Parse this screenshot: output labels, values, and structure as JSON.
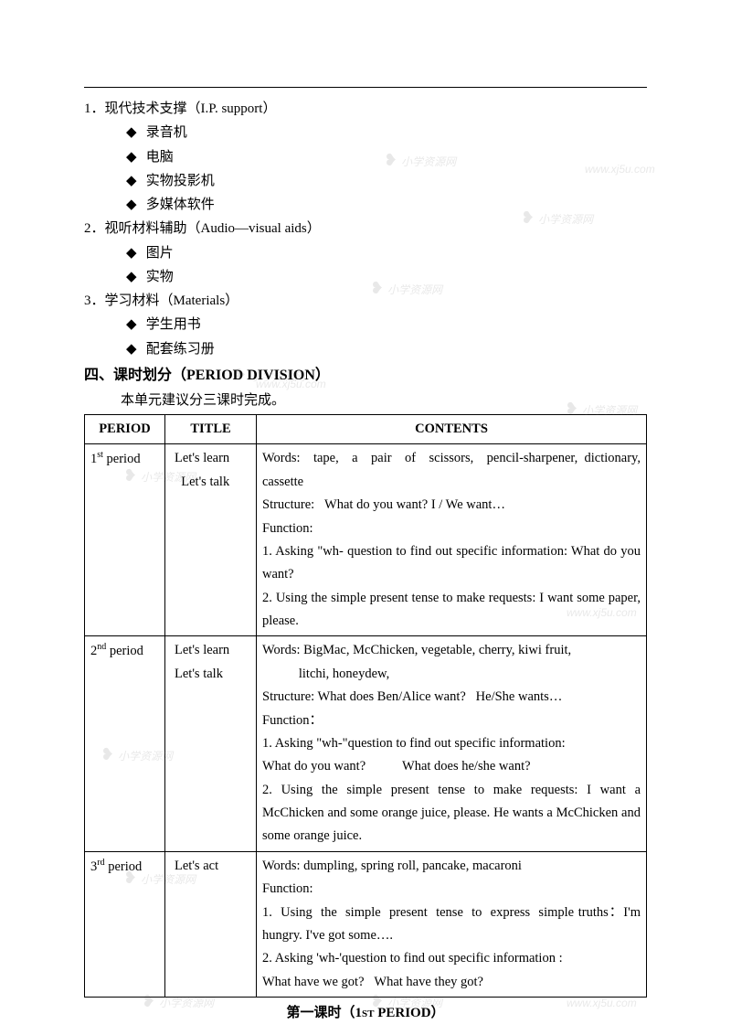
{
  "section1": {
    "num": "1．",
    "title": "现代技术支撑（I.P. support）",
    "items": [
      "录音机",
      "电脑",
      "实物投影机",
      "多媒体软件"
    ]
  },
  "section2": {
    "num": "2．",
    "title": "视听材料辅助（Audio—visual aids）",
    "items": [
      "图片",
      "实物"
    ]
  },
  "section3": {
    "num": "3．",
    "title": "学习材料（Materials）",
    "items": [
      "学生用书",
      "配套练习册"
    ]
  },
  "heading4": "四、课时划分（PERIOD DIVISION）",
  "intro": "本单元建议分三课时完成。",
  "table": {
    "headers": [
      "PERIOD",
      "TITLE",
      "CONTENTS"
    ],
    "rows": [
      {
        "period": "1<sup>st</sup> period",
        "title": "Let's learn<br>&nbsp;&nbsp;Let's talk",
        "contents": "Words: &nbsp;tape, &nbsp;a &nbsp;pair &nbsp;of &nbsp;scissors, &nbsp;pencil-sharpener, dictionary, cassette<br>Structure:&nbsp;&nbsp;&nbsp;What do you want? I / We want…<br>Function:<br>1. Asking \"wh- question to find out specific information: What do you want?<br>2. Using the simple present tense to make requests: I want some paper, please."
      },
      {
        "period": "2<sup>nd</sup> period",
        "title": "Let's learn<br>Let's talk",
        "contents": "Words: BigMac, McChicken, vegetable, cherry, kiwi fruit,<br>&nbsp;&nbsp;&nbsp;&nbsp;&nbsp;&nbsp;&nbsp;&nbsp;&nbsp;&nbsp;&nbsp;litchi, honeydew,<br>Structure: What does Ben/Alice want?&nbsp;&nbsp;&nbsp;He/She wants…<br>Function：<br>1. Asking \"wh-\"question to find out specific information:<br>What do you want?&nbsp;&nbsp;&nbsp;&nbsp;&nbsp;&nbsp;&nbsp;&nbsp;&nbsp;&nbsp;&nbsp;What does he/she want?<br>2. Using the simple present tense to make requests: I want a McChicken and some orange juice, please. He wants a McChicken and some orange juice."
      },
      {
        "period": "3<sup>rd</sup> period",
        "title": "Let's act",
        "contents": "Words: dumpling, spring roll, pancake, macaroni<br>Function:<br>1. &nbsp;Using &nbsp;the &nbsp;simple &nbsp;present &nbsp;tense &nbsp;to &nbsp;express &nbsp;simple truths：I'm hungry. I've got some….<br>2. Asking 'wh-'question to find out specific information :<br>What have we got?&nbsp;&nbsp;&nbsp;What have they got?"
      }
    ]
  },
  "footer": "第一课时（1<span class=\"sup-caps\">ST</span> PERIOD）",
  "watermark": {
    "text": "小学资源网",
    "url": "www.xj5u.com"
  },
  "colors": {
    "text": "#000000",
    "bg": "#ffffff",
    "border": "#000000",
    "watermark": "#555555"
  }
}
